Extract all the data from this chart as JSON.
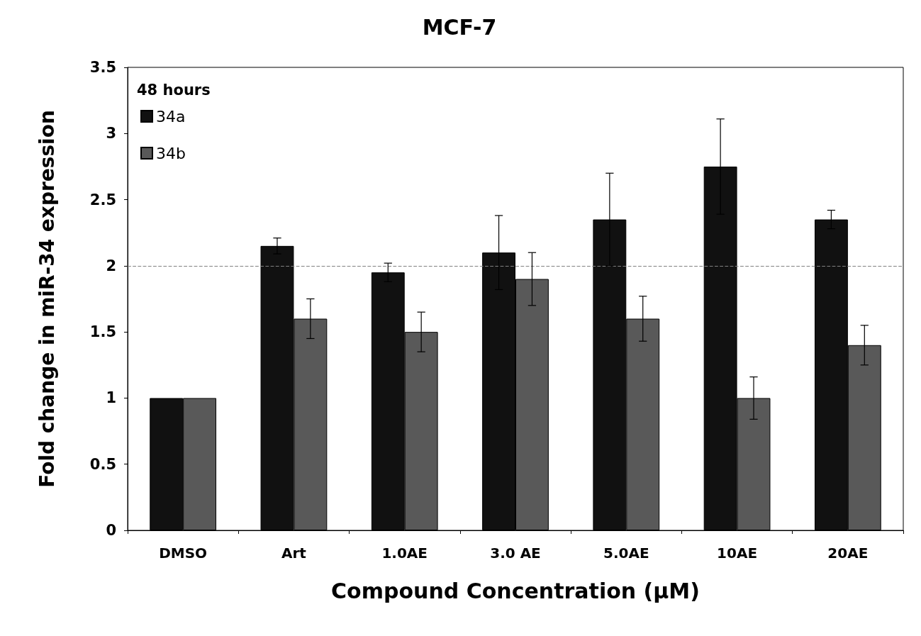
{
  "chart_data": {
    "type": "bar",
    "title": "MCF-7",
    "xlabel": "Compound Concentration (µM)",
    "ylabel": "Fold change in miR-34 expression",
    "legend_title": "48 hours",
    "categories": [
      "DMSO",
      "Art",
      "1.0AE",
      "3.0 AE",
      "5.0AE",
      "10AE",
      "20AE"
    ],
    "series": [
      {
        "name": "34a",
        "color": "#111111",
        "values": [
          1,
          2.15,
          1.95,
          2.1,
          2.35,
          2.75,
          2.35
        ],
        "errors": [
          null,
          0.06,
          0.07,
          0.28,
          0.35,
          0.36,
          0.07
        ]
      },
      {
        "name": "34b",
        "color": "#595959",
        "values": [
          1,
          1.6,
          1.5,
          1.9,
          1.6,
          1,
          1.4
        ],
        "errors": [
          null,
          0.15,
          0.15,
          0.2,
          0.17,
          0.16,
          0.15
        ]
      }
    ],
    "ylim": [
      0,
      3.5
    ],
    "yticks": [
      0,
      0.5,
      1,
      1.5,
      2,
      2.5,
      3,
      3.5
    ],
    "ref_lines": [
      {
        "axis": "y",
        "value": 2,
        "color": "#808080",
        "line_style": "dashed"
      }
    ],
    "grid": false,
    "legend": "top left"
  }
}
